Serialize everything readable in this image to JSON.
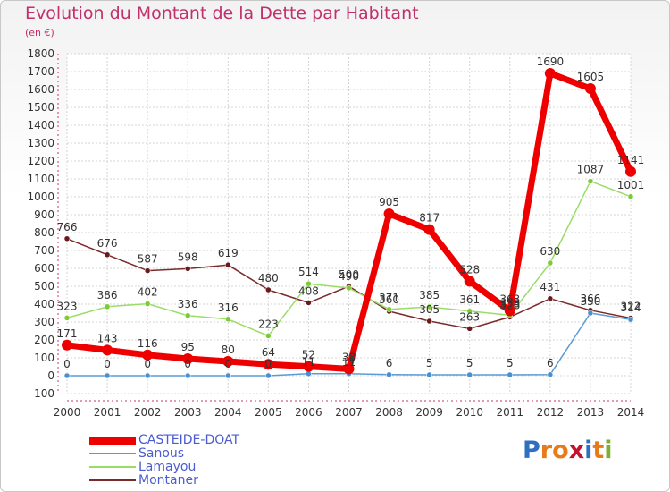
{
  "chart_data": {
    "type": "line",
    "title": "Evolution du Montant de la Dette par Habitant",
    "subtitle": "(en €)",
    "x": [
      "2000",
      "2001",
      "2002",
      "2003",
      "2004",
      "2005",
      "2006",
      "2007",
      "2008",
      "2009",
      "2010",
      "2011",
      "2012",
      "2013",
      "2014"
    ],
    "ylim": [
      -100,
      1800
    ],
    "yticks": [
      -100,
      0,
      100,
      200,
      300,
      400,
      500,
      600,
      700,
      800,
      900,
      1000,
      1100,
      1200,
      1300,
      1400,
      1500,
      1600,
      1700,
      1800
    ],
    "grid": true,
    "legend_position": "bottom-left",
    "series": [
      {
        "name": "CASTEIDE-DOAT",
        "color": "#ee0000",
        "values": [
          171,
          143,
          116,
          95,
          80,
          64,
          52,
          38,
          905,
          817,
          528,
          363,
          1690,
          1605,
          1141
        ],
        "labels": [
          "171",
          "143",
          "116",
          "95",
          "80",
          "64",
          "52",
          "38",
          "905",
          "817",
          "528",
          "363",
          "1690",
          "1605",
          "1141"
        ]
      },
      {
        "name": "Sanous",
        "color": "#5b9bd5",
        "values": [
          0,
          0,
          0,
          0,
          0,
          0,
          11,
          11,
          6,
          5,
          5,
          5,
          6,
          350,
          314
        ],
        "labels": [
          "0",
          "0",
          "0",
          "0",
          "0",
          "0",
          "11",
          "11",
          "6",
          "5",
          "5",
          "5",
          "6",
          "350",
          "314"
        ]
      },
      {
        "name": "Lamayou",
        "color": "#99dd66",
        "values": [
          323,
          386,
          402,
          336,
          316,
          223,
          514,
          490,
          371,
          385,
          361,
          338,
          630,
          1087,
          1001
        ],
        "labels": [
          "323",
          "386",
          "402",
          "336",
          "316",
          "223",
          "514",
          "490",
          "371",
          "385",
          "361",
          "338",
          "630",
          "1087",
          "1001"
        ]
      },
      {
        "name": "Montaner",
        "color": "#7a2a2a",
        "values": [
          766,
          676,
          587,
          598,
          619,
          480,
          408,
          500,
          360,
          305,
          263,
          328,
          431,
          366,
          322
        ],
        "labels": [
          "766",
          "676",
          "587",
          "598",
          "619",
          "480",
          "408",
          "500",
          "360",
          "305",
          "263",
          "328",
          "431",
          "366",
          "322"
        ]
      }
    ]
  },
  "legend": {
    "items": [
      {
        "label": "CASTEIDE-DOAT",
        "color": "#ee0000"
      },
      {
        "label": "Sanous",
        "color": "#5b9bd5"
      },
      {
        "label": "Lamayou",
        "color": "#99dd66"
      },
      {
        "label": "Montaner",
        "color": "#7a2a2a"
      }
    ]
  },
  "logo": {
    "text": "Proxiti",
    "letters": [
      {
        "ch": "P",
        "color": "#2e6fc0"
      },
      {
        "ch": "r",
        "color": "#e87a1a"
      },
      {
        "ch": "o",
        "color": "#e87a1a"
      },
      {
        "ch": "x",
        "color": "#c8102e"
      },
      {
        "ch": "i",
        "color": "#2e6fc0"
      },
      {
        "ch": "t",
        "color": "#e87a1a"
      },
      {
        "ch": "i",
        "color": "#7ab030"
      }
    ]
  }
}
